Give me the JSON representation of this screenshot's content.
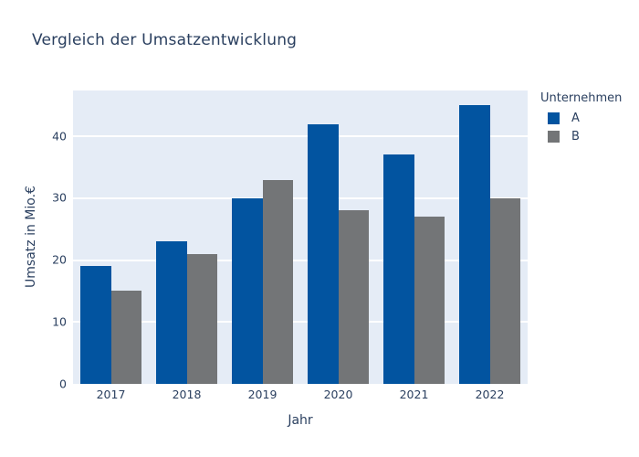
{
  "chart_data": {
    "type": "bar",
    "title": "Vergleich der Umsatzentwicklung",
    "xlabel": "Jahr",
    "ylabel": "Umsatz in Mio.€",
    "categories": [
      "2017",
      "2018",
      "2019",
      "2020",
      "2021",
      "2022"
    ],
    "series": [
      {
        "name": "A",
        "color": "#0254a0",
        "values": [
          19,
          23,
          30,
          42,
          37,
          45
        ]
      },
      {
        "name": "B",
        "color": "#737577",
        "values": [
          15,
          21,
          33,
          28,
          27,
          30
        ]
      }
    ],
    "legend": {
      "title": "Unternehmen",
      "position": "right",
      "entries": [
        "A",
        "B"
      ]
    },
    "yticks": [
      0,
      10,
      20,
      30,
      40
    ],
    "ylim": [
      0,
      47.4
    ],
    "grid": true,
    "colors": {
      "plot_bg": "#e5ecf6",
      "grid": "#ffffff",
      "font": "#2a3f5f",
      "page_bg": "#ffffff"
    }
  }
}
